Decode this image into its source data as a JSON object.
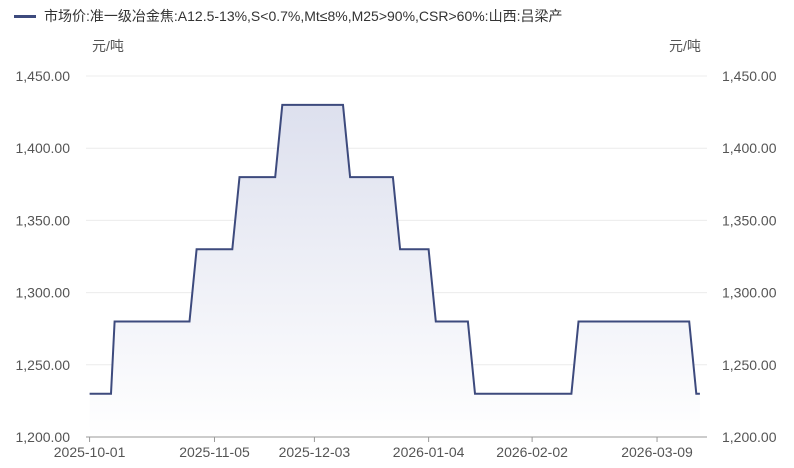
{
  "legend": {
    "label": "市场价:准一级冶金焦:A12.5-13%,S<0.7%,Mt≤8%,M25>90%,CSR>60%:山西:吕梁产"
  },
  "units": {
    "left": "元/吨",
    "right": "元/吨"
  },
  "colors": {
    "line": "#3d4a7d",
    "fill_top": "#dde0ee",
    "fill_bottom": "#ffffff",
    "grid": "#ececec",
    "axis": "#999999"
  },
  "chart_data": {
    "type": "line",
    "title": "",
    "xlabel": "",
    "ylabel": "元/吨",
    "ylim": [
      1200,
      1450
    ],
    "y_ticks": [
      1200,
      1250,
      1300,
      1350,
      1400,
      1450
    ],
    "y_tick_labels": [
      "1,200.00",
      "1,250.00",
      "1,300.00",
      "1,350.00",
      "1,400.00",
      "1,450.00"
    ],
    "x_tick_labels": [
      "2025-10-01",
      "2025-11-05",
      "2025-12-03",
      "2026-01-04",
      "2026-02-02",
      "2026-03-09"
    ],
    "grid": true,
    "legend_position": "top-left",
    "area_fill": true,
    "step": true,
    "series": [
      {
        "name": "市场价:准一级冶金焦:A12.5-13%,S<0.7%,Mt≤8%,M25>90%,CSR>60%:山西:吕梁产",
        "points": [
          {
            "x": "2025-10-01",
            "y": 1230
          },
          {
            "x": "2025-10-07",
            "y": 1230
          },
          {
            "x": "2025-10-08",
            "y": 1280
          },
          {
            "x": "2025-10-29",
            "y": 1280
          },
          {
            "x": "2025-10-31",
            "y": 1330
          },
          {
            "x": "2025-11-10",
            "y": 1330
          },
          {
            "x": "2025-11-12",
            "y": 1380
          },
          {
            "x": "2025-11-22",
            "y": 1380
          },
          {
            "x": "2025-11-24",
            "y": 1430
          },
          {
            "x": "2025-12-11",
            "y": 1430
          },
          {
            "x": "2025-12-13",
            "y": 1380
          },
          {
            "x": "2025-12-25",
            "y": 1380
          },
          {
            "x": "2025-12-27",
            "y": 1330
          },
          {
            "x": "2026-01-04",
            "y": 1330
          },
          {
            "x": "2026-01-06",
            "y": 1280
          },
          {
            "x": "2026-01-15",
            "y": 1280
          },
          {
            "x": "2026-01-17",
            "y": 1230
          },
          {
            "x": "2026-02-13",
            "y": 1230
          },
          {
            "x": "2026-02-15",
            "y": 1280
          },
          {
            "x": "2026-03-18",
            "y": 1280
          },
          {
            "x": "2026-03-20",
            "y": 1230
          },
          {
            "x": "2026-03-21",
            "y": 1230
          }
        ]
      }
    ]
  }
}
